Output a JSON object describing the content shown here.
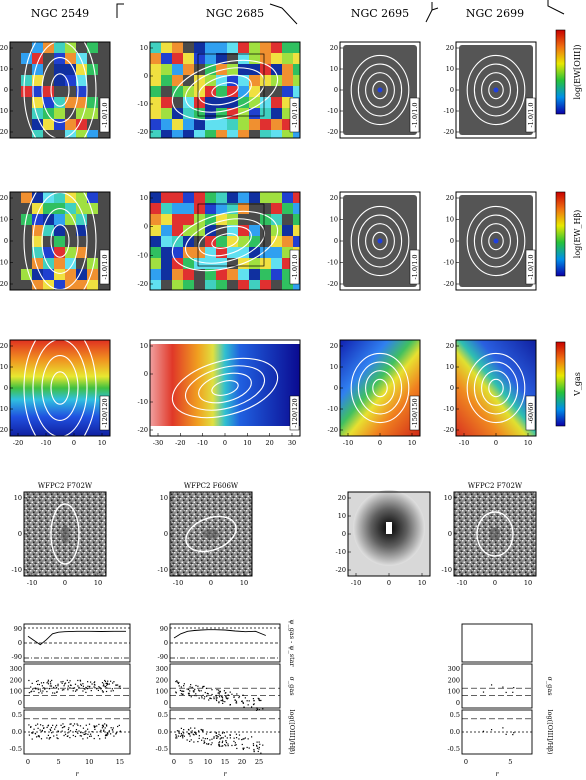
{
  "galaxies": [
    {
      "name": "NGC 2549"
    },
    {
      "name": "NGC 2685"
    },
    {
      "name": "NGC 2695"
    },
    {
      "name": "NGC 2699"
    }
  ],
  "colorbars": [
    {
      "label": "log(EW[OIII])"
    },
    {
      "label": "log(EW_Hβ)"
    },
    {
      "label": "V_gas"
    }
  ],
  "map_rows": [
    {
      "row": "oiii",
      "panels": [
        {
          "x_ticks": [],
          "y_ticks": [
            "20",
            "10",
            "0",
            "-10",
            "-20"
          ],
          "range": "-1.0/1.0",
          "background": "gas-patchy"
        },
        {
          "x_ticks": [],
          "y_ticks": [
            "10",
            "0",
            "-10",
            "-20"
          ],
          "range": "-1.0/1.0",
          "background": "gas-full"
        },
        {
          "x_ticks": [],
          "y_ticks": [
            "20",
            "10",
            "0",
            "-10",
            "-20"
          ],
          "range": "-1.0/1.0",
          "background": "grey"
        },
        {
          "x_ticks": [],
          "y_ticks": [
            "20",
            "10",
            "0",
            "-10",
            "-20"
          ],
          "range": "-1.0/1.0",
          "background": "grey"
        }
      ]
    },
    {
      "row": "hbeta",
      "panels": [
        {
          "x_ticks": [],
          "y_ticks": [
            "20",
            "10",
            "0",
            "-10",
            "-20"
          ],
          "range": "-1.0/1.0",
          "background": "gas-patchy"
        },
        {
          "x_ticks": [],
          "y_ticks": [
            "10",
            "0",
            "-10",
            "-20"
          ],
          "range": "-1.0/1.0",
          "background": "gas-full"
        },
        {
          "x_ticks": [],
          "y_ticks": [
            "20",
            "10",
            "0",
            "-10",
            "-20"
          ],
          "range": "-1.0/1.0",
          "background": "grey"
        },
        {
          "x_ticks": [],
          "y_ticks": [
            "20",
            "10",
            "0",
            "-10",
            "-20"
          ],
          "range": "-1.0/1.0",
          "background": "grey"
        }
      ]
    },
    {
      "row": "vgas",
      "panels": [
        {
          "x_ticks": [
            "-20",
            "-10",
            "0",
            "10"
          ],
          "y_ticks": [
            "20",
            "10",
            "0",
            "-10",
            "-20"
          ],
          "range": "-120/120",
          "background": "vel-vertical"
        },
        {
          "x_ticks": [
            "-30",
            "-20",
            "-10",
            "0",
            "10",
            "20",
            "30"
          ],
          "y_ticks": [
            "10",
            "0",
            "-10",
            "-20"
          ],
          "range": "-120/120",
          "background": "vel-horizontal"
        },
        {
          "x_ticks": [
            "-10",
            "0",
            "10"
          ],
          "y_ticks": [
            "20",
            "10",
            "0",
            "-10",
            "-20"
          ],
          "range": "-150/150",
          "background": "vel-diagonal"
        },
        {
          "x_ticks": [
            "-10",
            "0",
            "10"
          ],
          "y_ticks": [
            "20",
            "10",
            "0",
            "-10",
            "-20"
          ],
          "range": "-60/60",
          "background": "vel-diagonal2"
        }
      ]
    }
  ],
  "wfpc2": [
    {
      "title": "WFPC2 F702W",
      "x_ticks": [
        "-10",
        "0",
        "10"
      ],
      "y_ticks": [
        "10",
        "0",
        "-10"
      ]
    },
    {
      "title": "WFPC2 F606W",
      "x_ticks": [
        "-10",
        "0",
        "10"
      ],
      "y_ticks": [
        "10",
        "0",
        "-10"
      ]
    },
    {
      "title": "",
      "x_ticks": [
        "-10",
        "0",
        "10"
      ],
      "y_ticks": [
        "20",
        "10",
        "0",
        "-10",
        "-20"
      ]
    },
    {
      "title": "WFPC2 F702W",
      "x_ticks": [
        "-10",
        "0",
        "10"
      ],
      "y_ticks": [
        "10",
        "0",
        "-10"
      ]
    }
  ],
  "profiles": {
    "panels": [
      {
        "x_ticks": [
          "0",
          "5",
          "10",
          "15"
        ],
        "xlabel": "r"
      },
      {
        "x_ticks": [
          "0",
          "5",
          "10",
          "15",
          "20",
          "25"
        ],
        "xlabel": "r"
      },
      {
        "x_ticks": [
          "0",
          "5"
        ],
        "xlabel": "r"
      }
    ],
    "top_yticks": [
      "90",
      "0",
      "-90"
    ],
    "mid_yticks": [
      "300",
      "200",
      "100",
      "0"
    ],
    "bot_yticks": [
      "0.5",
      "0.0",
      "-0.5"
    ],
    "right_labels": [
      "ψ_gas - ψ_star",
      "σ_gas",
      "log([OIII]/Hβ)"
    ]
  },
  "chart_data": {
    "type": "figure-grid",
    "columns": [
      "NGC 2549",
      "NGC 2685",
      "NGC 2695",
      "NGC 2699"
    ],
    "map_rows": [
      "log(EW[OIII])",
      "log(EW_Hβ)",
      "V_gas",
      "WFPC2"
    ],
    "map_ranges": {
      "log(EW[OIII])": [
        "-1.0/1.0",
        "-1.0/1.0",
        "-1.0/1.0",
        "-1.0/1.0"
      ],
      "log(EW_Hβ)": [
        "-1.0/1.0",
        "-1.0/1.0",
        "-1.0/1.0",
        "-1.0/1.0"
      ],
      "V_gas": [
        "-120/120",
        "-120/120",
        "-150/150",
        "-60/60"
      ]
    },
    "wfpc2_filters": [
      "F702W",
      "F606W",
      "",
      "F702W"
    ],
    "profile_reference_lines": {
      "ψ_gas - ψ_star": [
        90,
        0,
        -90
      ],
      "σ_gas_axis": [
        0,
        100,
        200,
        300
      ],
      "log([OIII]/Hβ)_axis": [
        -0.5,
        0.0,
        0.5
      ]
    },
    "profile_curves": {
      "NGC 2549": {
        "r": [
          0,
          1,
          2,
          3,
          4,
          5,
          6,
          8,
          10,
          12,
          14,
          16
        ],
        "psi": [
          40,
          15,
          -10,
          20,
          55,
          65,
          68,
          70,
          70,
          69,
          70,
          70
        ]
      },
      "NGC 2685": {
        "r": [
          0,
          2,
          4,
          6,
          8,
          10,
          12,
          15,
          18,
          21,
          24,
          27
        ],
        "psi": [
          30,
          55,
          70,
          75,
          78,
          80,
          80,
          78,
          72,
          68,
          70,
          45
        ]
      }
    }
  }
}
